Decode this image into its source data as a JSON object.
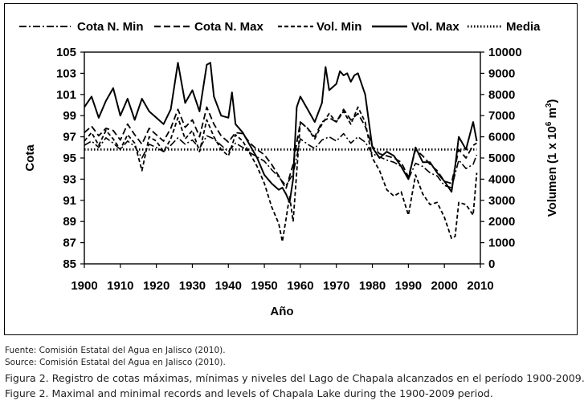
{
  "chart_data": {
    "type": "line",
    "title": "",
    "xlabel": "Año",
    "ylabel": "Cota",
    "y2label_main": "Volumen (1 x 10",
    "y2label_exp": "6",
    "y2label_unit": " m",
    "y2label_unit_exp": "3",
    "y2label_close": ")",
    "xlim": [
      1900,
      2010
    ],
    "ylim": [
      85,
      105
    ],
    "y2lim": [
      0,
      10000
    ],
    "x_ticks": [
      "1900",
      "1910",
      "1920",
      "1930",
      "1940",
      "1950",
      "1960",
      "1970",
      "1980",
      "1990",
      "2000",
      "2010"
    ],
    "y_ticks": [
      "85",
      "87",
      "89",
      "91",
      "93",
      "95",
      "97",
      "99",
      "101",
      "103",
      "105"
    ],
    "y2_ticks": [
      "0",
      "1000",
      "2000",
      "3000",
      "4000",
      "5000",
      "6000",
      "7000",
      "8000",
      "9000",
      "10000"
    ],
    "grid": false,
    "legend_position": "top",
    "series": [
      {
        "name": "Cota N. Min",
        "axis": "left",
        "style": "dashdot",
        "x": [
          1900,
          1902,
          1904,
          1906,
          1908,
          1910,
          1912,
          1914,
          1916,
          1918,
          1920,
          1922,
          1924,
          1926,
          1928,
          1930,
          1932,
          1934,
          1936,
          1938,
          1940,
          1942,
          1944,
          1946,
          1948,
          1950,
          1952,
          1954,
          1956,
          1958,
          1960,
          1962,
          1964,
          1966,
          1968,
          1970,
          1972,
          1974,
          1976,
          1978,
          1980,
          1982,
          1984,
          1986,
          1988,
          1990,
          1992,
          1994,
          1996,
          1998,
          2000,
          2002,
          2004,
          2006,
          2008,
          2009
        ],
        "values": [
          96.2,
          96.6,
          96.0,
          96.9,
          96.4,
          95.8,
          96.6,
          96.1,
          95.0,
          96.3,
          96.0,
          95.6,
          96.2,
          96.9,
          96.3,
          96.7,
          95.9,
          97.1,
          96.8,
          96.2,
          95.6,
          96.4,
          96.0,
          95.5,
          95.1,
          94.7,
          93.9,
          93.2,
          92.4,
          93.5,
          96.8,
          96.3,
          95.9,
          96.7,
          97.0,
          96.6,
          97.3,
          96.4,
          97.0,
          96.5,
          95.4,
          95.1,
          94.8,
          94.6,
          94.2,
          93.0,
          94.5,
          94.2,
          93.6,
          93.3,
          92.4,
          92.2,
          94.8,
          94.0,
          94.4,
          95.3
        ]
      },
      {
        "name": "Cota N. Max",
        "axis": "left",
        "style": "dashed",
        "x": [
          1900,
          1902,
          1904,
          1906,
          1908,
          1910,
          1912,
          1914,
          1916,
          1918,
          1920,
          1922,
          1924,
          1926,
          1928,
          1930,
          1932,
          1934,
          1936,
          1938,
          1940,
          1942,
          1944,
          1946,
          1948,
          1950,
          1952,
          1954,
          1956,
          1958,
          1960,
          1962,
          1964,
          1966,
          1968,
          1970,
          1972,
          1974,
          1976,
          1978,
          1980,
          1982,
          1984,
          1986,
          1988,
          1990,
          1992,
          1994,
          1996,
          1998,
          2000,
          2002,
          2004,
          2006,
          2008,
          2009
        ],
        "values": [
          97.4,
          98.0,
          97.1,
          97.8,
          97.6,
          96.7,
          98.2,
          97.2,
          96.3,
          97.8,
          97.2,
          96.6,
          97.8,
          99.6,
          97.9,
          98.6,
          97.0,
          99.8,
          98.2,
          97.1,
          96.5,
          97.4,
          97.3,
          96.4,
          95.8,
          95.3,
          94.4,
          93.3,
          92.1,
          94.4,
          98.4,
          97.8,
          97.0,
          98.4,
          98.8,
          98.4,
          99.6,
          98.6,
          99.2,
          98.0,
          96.1,
          95.4,
          95.2,
          95.0,
          94.6,
          93.2,
          95.8,
          95.2,
          94.4,
          93.8,
          92.8,
          92.6,
          95.8,
          95.0,
          96.2,
          96.4
        ]
      },
      {
        "name": "Vol. Min",
        "axis": "right",
        "style": "short-dash",
        "x": [
          1900,
          1902,
          1904,
          1906,
          1908,
          1910,
          1912,
          1914,
          1916,
          1918,
          1920,
          1922,
          1924,
          1926,
          1928,
          1930,
          1932,
          1934,
          1936,
          1938,
          1940,
          1942,
          1944,
          1946,
          1948,
          1950,
          1952,
          1954,
          1955,
          1956,
          1957,
          1958,
          1960,
          1962,
          1964,
          1966,
          1968,
          1970,
          1972,
          1974,
          1976,
          1978,
          1980,
          1982,
          1984,
          1986,
          1988,
          1990,
          1992,
          1994,
          1996,
          1998,
          2000,
          2002,
          2003,
          2004,
          2006,
          2008,
          2009
        ],
        "values": [
          5800,
          6200,
          5600,
          6300,
          5900,
          5400,
          6100,
          5700,
          4400,
          6000,
          5800,
          5300,
          5900,
          6900,
          5900,
          6300,
          5300,
          6800,
          6000,
          5400,
          5100,
          6100,
          5800,
          5200,
          4600,
          3800,
          2700,
          1900,
          1050,
          2100,
          3200,
          2000,
          6700,
          6400,
          5900,
          6600,
          7100,
          6700,
          7200,
          6600,
          7400,
          6700,
          5000,
          4400,
          3500,
          3200,
          3400,
          2300,
          4200,
          3300,
          2800,
          2900,
          2200,
          1200,
          1300,
          2900,
          2800,
          2300,
          4300
        ]
      },
      {
        "name": "Vol. Max",
        "axis": "right",
        "style": "solid",
        "x": [
          1900,
          1902,
          1904,
          1906,
          1908,
          1910,
          1912,
          1914,
          1916,
          1918,
          1920,
          1922,
          1924,
          1926,
          1928,
          1930,
          1932,
          1934,
          1935,
          1936,
          1938,
          1940,
          1941,
          1942,
          1944,
          1946,
          1948,
          1950,
          1952,
          1954,
          1955,
          1956,
          1957,
          1958,
          1959,
          1960,
          1962,
          1964,
          1966,
          1967,
          1968,
          1970,
          1971,
          1972,
          1973,
          1974,
          1975,
          1976,
          1978,
          1980,
          1982,
          1984,
          1986,
          1988,
          1990,
          1992,
          1994,
          1996,
          1998,
          2000,
          2002,
          2003,
          2004,
          2006,
          2008,
          2009
        ],
        "values": [
          7400,
          7900,
          6900,
          7700,
          8300,
          7000,
          7800,
          6800,
          7800,
          7200,
          6900,
          6600,
          7300,
          9500,
          7600,
          8200,
          7200,
          9400,
          9500,
          7900,
          7000,
          6900,
          8100,
          6600,
          6200,
          5600,
          5000,
          4200,
          3800,
          3500,
          3600,
          3300,
          2900,
          4000,
          7400,
          7900,
          7300,
          6700,
          7600,
          9300,
          8200,
          8500,
          9100,
          8900,
          9000,
          8600,
          8900,
          9000,
          8000,
          5500,
          5000,
          5300,
          5100,
          4600,
          4000,
          5500,
          4800,
          4800,
          4300,
          3900,
          3400,
          4600,
          6000,
          5400,
          6700,
          5800
        ]
      },
      {
        "name": "Media",
        "axis": "left",
        "style": "dotted",
        "x": [
          1900,
          2009
        ],
        "values": [
          95.8,
          95.8
        ]
      }
    ]
  },
  "captions": {
    "source_es": "Fuente: Comisión Estatal del Agua en Jalisco (2010).",
    "source_en": "Source: Comisión Estatal del Agua en Jalisco (2010).",
    "figure_es": "Figura 2. Registro de cotas máximas, mínimas y niveles del Lago de Chapala alcanzados en el período 1900-2009.",
    "figure_en": "Figure 2. Maximal and minimal records and levels of Chapala Lake during the 1900-2009 period."
  },
  "colors": {
    "line": "#000000",
    "background": "#ffffff",
    "caption_text": "#222222"
  }
}
